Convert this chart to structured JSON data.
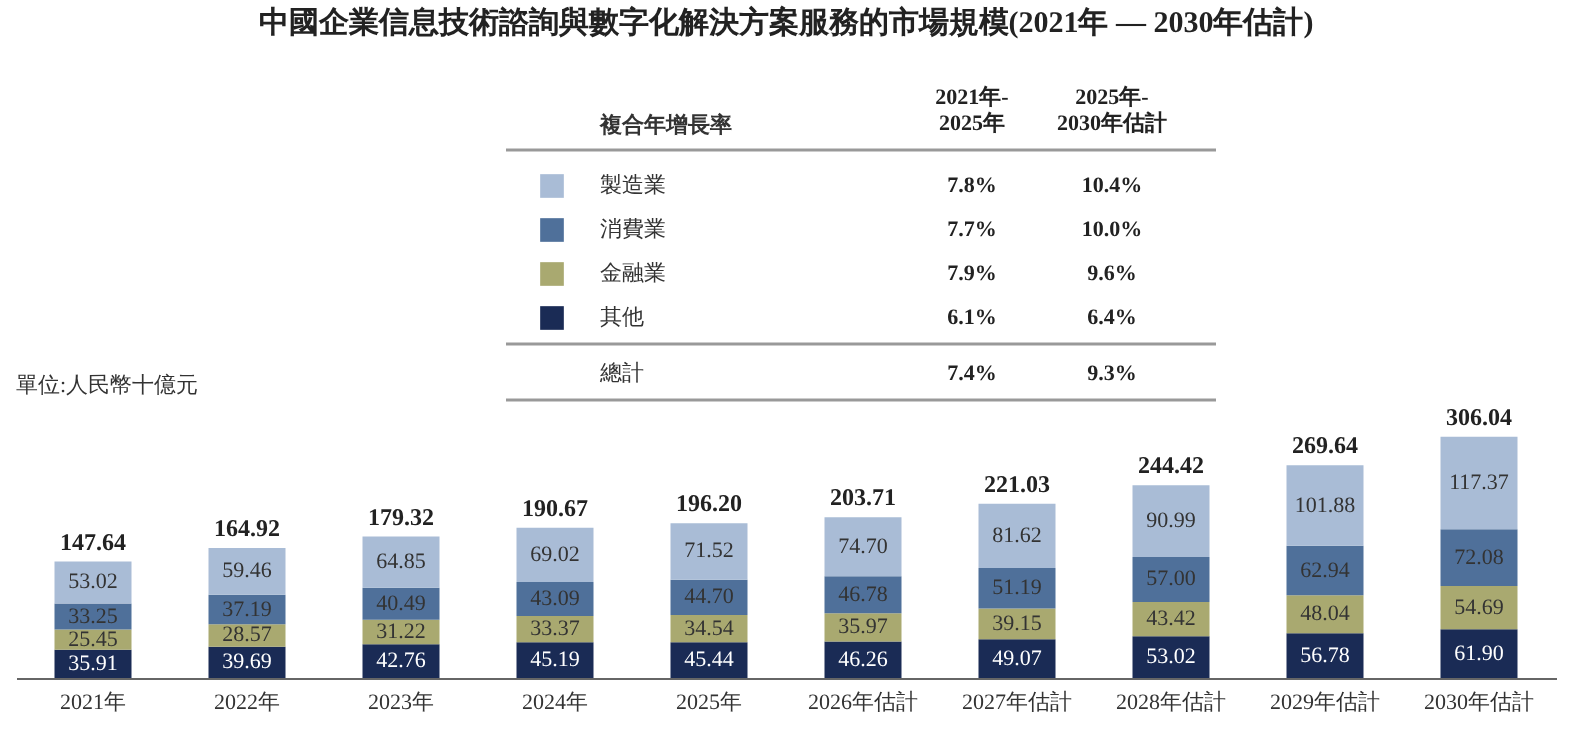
{
  "chart_data": {
    "type": "bar",
    "title": "中國企業信息技術諮詢與數字化解決方案服務的市場規模(2021年 — 2030年估計)",
    "categories": [
      "2021年",
      "2022年",
      "2023年",
      "2024年",
      "2025年",
      "2026年估計",
      "2027年估計",
      "2028年估計",
      "2029年估計",
      "2030年估計"
    ],
    "stacked": true,
    "legend": "top",
    "grid": false,
    "series": [
      {
        "name": "其他",
        "color": "#1a2b55",
        "values": [
          35.91,
          39.69,
          42.76,
          45.19,
          45.44,
          46.26,
          49.07,
          53.02,
          56.78,
          61.9
        ],
        "value_labels": [
          "35.91",
          "39.69",
          "42.76",
          "45.19",
          "45.44",
          "46.26",
          "49.07",
          "53.02",
          "56.78",
          "61.90"
        ]
      },
      {
        "name": "金融業",
        "color": "#a9a970",
        "values": [
          25.45,
          28.57,
          31.22,
          33.37,
          34.54,
          35.97,
          39.15,
          43.42,
          48.04,
          54.69
        ],
        "value_labels": [
          "25.45",
          "28.57",
          "31.22",
          "33.37",
          "34.54",
          "35.97",
          "39.15",
          "43.42",
          "48.04",
          "54.69"
        ]
      },
      {
        "name": "消費業",
        "color": "#4f709a",
        "values": [
          33.25,
          37.19,
          40.49,
          43.09,
          44.7,
          46.78,
          51.19,
          57.0,
          62.94,
          72.08
        ],
        "value_labels": [
          "33.25",
          "37.19",
          "40.49",
          "43.09",
          "44.70",
          "46.78",
          "51.19",
          "57.00",
          "62.94",
          "72.08"
        ]
      },
      {
        "name": "製造業",
        "color": "#a9bcd6",
        "values": [
          53.02,
          59.46,
          64.85,
          69.02,
          71.52,
          74.7,
          81.62,
          90.99,
          101.88,
          117.37
        ],
        "value_labels": [
          "53.02",
          "59.46",
          "64.85",
          "69.02",
          "71.52",
          "74.70",
          "81.62",
          "90.99",
          "101.88",
          "117.37"
        ]
      }
    ],
    "totals": [
      "147.64",
      "164.92",
      "179.32",
      "190.67",
      "196.20",
      "203.71",
      "221.03",
      "244.42",
      "269.64",
      "306.04"
    ],
    "annotations": [
      "單位:人民幣十億元",
      "複合年增長率",
      "2021年-\n2025年",
      "2025年-\n2030年估計",
      "7.8%",
      "10.4%",
      "7.7%",
      "10.0%",
      "7.9%",
      "9.6%",
      "6.1%",
      "6.4%",
      "總計",
      "7.4%",
      "9.3%"
    ]
  }
}
